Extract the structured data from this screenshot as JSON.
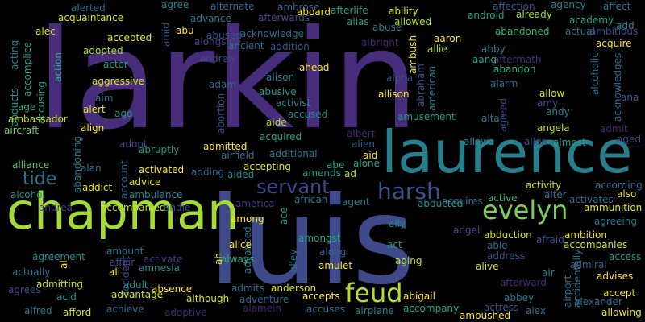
{
  "background": "#000000",
  "words": [
    {
      "text": "larkin",
      "color": "#472d7b"
    },
    {
      "text": "luis",
      "color": "#3e4a89"
    },
    {
      "text": "laurence",
      "color": "#277f8e"
    },
    {
      "text": "chapman",
      "color": "#a5db36"
    },
    {
      "text": "evelyn",
      "color": "#7ad151"
    },
    {
      "text": "feud",
      "color": "#b5de2b"
    },
    {
      "text": "harsh",
      "color": "#3b528b"
    },
    {
      "text": "servant",
      "color": "#3e4989"
    },
    {
      "text": "tide",
      "color": "#2c728e"
    },
    {
      "text": "agree",
      "color": "#25838e"
    },
    {
      "text": "alerted",
      "color": "#2e6f8e"
    },
    {
      "text": "alternate",
      "color": "#31688e"
    },
    {
      "text": "ambrose",
      "color": "#33638d"
    },
    {
      "text": "affection",
      "color": "#365c8d"
    },
    {
      "text": "agency",
      "color": "#26828e"
    },
    {
      "text": "affect",
      "color": "#2a778e"
    },
    {
      "text": "ability",
      "color": "#d2e21b"
    },
    {
      "text": "acting",
      "color": "#26828e"
    },
    {
      "text": "accomplice",
      "color": "#1e9c89"
    },
    {
      "text": "acquaintance",
      "color": "#d8e219"
    },
    {
      "text": "advance",
      "color": "#2a788e"
    },
    {
      "text": "aboard",
      "color": "#fde725"
    },
    {
      "text": "afterwards",
      "color": "#3f4889"
    },
    {
      "text": "afterlife",
      "color": "#1fa187"
    },
    {
      "text": "alias",
      "color": "#1f9a8a"
    },
    {
      "text": "allowed",
      "color": "#b5de2b"
    },
    {
      "text": "android",
      "color": "#20a486"
    },
    {
      "text": "already",
      "color": "#a0da39"
    },
    {
      "text": "academy",
      "color": "#22a785"
    },
    {
      "text": "add",
      "color": "#25858e"
    },
    {
      "text": "alec",
      "color": "#d2e21b"
    },
    {
      "text": "accepted",
      "color": "#e7e419"
    },
    {
      "text": "amid",
      "color": "#3b528b"
    },
    {
      "text": "abu",
      "color": "#fde725"
    },
    {
      "text": "acknowledge",
      "color": "#2f6c8e"
    },
    {
      "text": "abuse",
      "color": "#29798e"
    },
    {
      "text": "ambush",
      "color": "#e5e419"
    },
    {
      "text": "aaron",
      "color": "#fde725"
    },
    {
      "text": "abandoned",
      "color": "#2db27d"
    },
    {
      "text": "actual",
      "color": "#2c728e"
    },
    {
      "text": "ambitious",
      "color": "#3e4a89"
    },
    {
      "text": "alongside",
      "color": "#3f4788"
    },
    {
      "text": "abused",
      "color": "#3b528b"
    },
    {
      "text": "albright",
      "color": "#482576"
    },
    {
      "text": "allie",
      "color": "#a5db36"
    },
    {
      "text": "abby",
      "color": "#29798e"
    },
    {
      "text": "aftermath",
      "color": "#472c7a"
    },
    {
      "text": "acquire",
      "color": "#fde725"
    },
    {
      "text": "action",
      "color": "#29af7f"
    },
    {
      "text": "adopted",
      "color": "#addc30"
    },
    {
      "text": "ancient",
      "color": "#2e6e8e"
    },
    {
      "text": "addition",
      "color": "#3a548c"
    },
    {
      "text": "actor",
      "color": "#1fa088"
    },
    {
      "text": "andrew",
      "color": "#3f4788"
    },
    {
      "text": "aang",
      "color": "#20a486"
    },
    {
      "text": "abandon",
      "color": "#2ab07f"
    },
    {
      "text": "alcoholic",
      "color": "#2c728e"
    },
    {
      "text": "acknowledges",
      "color": "#31688e"
    },
    {
      "text": "aggressive",
      "color": "#d8e219"
    },
    {
      "text": "ahead",
      "color": "#fde725"
    },
    {
      "text": "adam",
      "color": "#32648e"
    },
    {
      "text": "alison",
      "color": "#26828e"
    },
    {
      "text": "alpha",
      "color": "#3e4a89"
    },
    {
      "text": "abraham",
      "color": "#3a548c"
    },
    {
      "text": "american",
      "color": "#2a778e"
    },
    {
      "text": "alarm",
      "color": "#31688e"
    },
    {
      "text": "abducts",
      "color": "#1f948c"
    },
    {
      "text": "accusing",
      "color": "#22a785"
    },
    {
      "text": "aim",
      "color": "#2c718e"
    },
    {
      "text": "abusive",
      "color": "#1f998a"
    },
    {
      "text": "allison",
      "color": "#fde725"
    },
    {
      "text": "allow",
      "color": "#d0e11c"
    },
    {
      "text": "ana",
      "color": "#365d8d"
    },
    {
      "text": "age",
      "color": "#29af7f"
    },
    {
      "text": "alert",
      "color": "#e5e419"
    },
    {
      "text": "ago",
      "color": "#1f958b"
    },
    {
      "text": "abortion",
      "color": "#3b518b"
    },
    {
      "text": "activist",
      "color": "#26828e"
    },
    {
      "text": "amy",
      "color": "#3b528b"
    },
    {
      "text": "andy",
      "color": "#24868e"
    },
    {
      "text": "ambassador",
      "color": "#c2df23"
    },
    {
      "text": "accused",
      "color": "#24878e"
    },
    {
      "text": "aide",
      "color": "#addc30"
    },
    {
      "text": "amusement",
      "color": "#1f9a8a"
    },
    {
      "text": "altar",
      "color": "#2c728e"
    },
    {
      "text": "agreed",
      "color": "#3f4889"
    },
    {
      "text": "angela",
      "color": "#b5de2b"
    },
    {
      "text": "admit",
      "color": "#482475"
    },
    {
      "text": "aged",
      "color": "#3e4a89"
    },
    {
      "text": "aircraft",
      "color": "#6ece58"
    },
    {
      "text": "align",
      "color": "#fde725"
    },
    {
      "text": "adopt",
      "color": "#3e4989"
    },
    {
      "text": "acquired",
      "color": "#1fa188"
    },
    {
      "text": "albert",
      "color": "#482575"
    },
    {
      "text": "alien",
      "color": "#365d8d"
    },
    {
      "text": "allows",
      "color": "#24878e"
    },
    {
      "text": "allen",
      "color": "#3f4788"
    },
    {
      "text": "almost",
      "color": "#1fa088"
    },
    {
      "text": "abruptly",
      "color": "#1f998a"
    },
    {
      "text": "admitted",
      "color": "#fde725"
    },
    {
      "text": "airfield",
      "color": "#2e6e8e"
    },
    {
      "text": "additional",
      "color": "#2c738e"
    },
    {
      "text": "aid",
      "color": "#fde725"
    },
    {
      "text": "alone",
      "color": "#22a785"
    },
    {
      "text": "alliance",
      "color": "#5ec962"
    },
    {
      "text": "abandoning",
      "color": "#287c8e"
    },
    {
      "text": "alan",
      "color": "#2c728e"
    },
    {
      "text": "account",
      "color": "#32658e"
    },
    {
      "text": "activated",
      "color": "#fde725"
    },
    {
      "text": "adding",
      "color": "#31688e"
    },
    {
      "text": "aided",
      "color": "#24878e"
    },
    {
      "text": "accepting",
      "color": "#d8e219"
    },
    {
      "text": "amends",
      "color": "#1f9a8a"
    },
    {
      "text": "ad",
      "color": "#bade28"
    },
    {
      "text": "abe",
      "color": "#22a785"
    },
    {
      "text": "activity",
      "color": "#cde11d"
    },
    {
      "text": "activates",
      "color": "#2f6c8e"
    },
    {
      "text": "according",
      "color": "#2e6e8e"
    },
    {
      "text": "alcohol",
      "color": "#20928c"
    },
    {
      "text": "addict",
      "color": "#e2e418"
    },
    {
      "text": "advice",
      "color": "#e7e419"
    },
    {
      "text": "also",
      "color": "#d8e219"
    },
    {
      "text": "ambulance",
      "color": "#25858e"
    },
    {
      "text": "african",
      "color": "#2a788e"
    },
    {
      "text": "agent",
      "color": "#26828e"
    },
    {
      "text": "acquires",
      "color": "#2e6e8e"
    },
    {
      "text": "active",
      "color": "#31b57b"
    },
    {
      "text": "alter",
      "color": "#2a788e"
    },
    {
      "text": "ammunition",
      "color": "#e5e419"
    },
    {
      "text": "andrea",
      "color": "#443983"
    },
    {
      "text": "accompanied",
      "color": "#bade28"
    },
    {
      "text": "andie",
      "color": "#3b528b"
    },
    {
      "text": "america",
      "color": "#443983"
    },
    {
      "text": "abducted",
      "color": "#1f948c"
    },
    {
      "text": "agreeing",
      "color": "#2c728e"
    },
    {
      "text": "among",
      "color": "#fde725"
    },
    {
      "text": "ace",
      "color": "#1f968b"
    },
    {
      "text": "ally",
      "color": "#25838e"
    },
    {
      "text": "angel",
      "color": "#3b528b"
    },
    {
      "text": "abduction",
      "color": "#d8e219"
    },
    {
      "text": "afraid",
      "color": "#3b528b"
    },
    {
      "text": "ambition",
      "color": "#e5e419"
    },
    {
      "text": "accompanies",
      "color": "#cde11d"
    },
    {
      "text": "amongst",
      "color": "#22a785"
    },
    {
      "text": "advanced",
      "color": "#2a778e"
    },
    {
      "text": "able",
      "color": "#2e6f8e"
    },
    {
      "text": "alice",
      "color": "#fde725"
    },
    {
      "text": "alley",
      "color": "#2c728e"
    },
    {
      "text": "along",
      "color": "#31688e"
    },
    {
      "text": "act",
      "color": "#1fa088"
    },
    {
      "text": "agreement",
      "color": "#20928c"
    },
    {
      "text": "amount",
      "color": "#29798e"
    },
    {
      "text": "activate",
      "color": "#443983"
    },
    {
      "text": "ah",
      "color": "#fde725"
    },
    {
      "text": "always",
      "color": "#2ab07f"
    },
    {
      "text": "address",
      "color": "#3b528b"
    },
    {
      "text": "access",
      "color": "#1f968b"
    },
    {
      "text": "al",
      "color": "#fde725"
    },
    {
      "text": "accident",
      "color": "#3e4a89"
    },
    {
      "text": "affair",
      "color": "#414487"
    },
    {
      "text": "aging",
      "color": "#b5de2b"
    },
    {
      "text": "alive",
      "color": "#d2e21b"
    },
    {
      "text": "air",
      "color": "#24868e"
    },
    {
      "text": "admiral",
      "color": "#33638d"
    },
    {
      "text": "actually",
      "color": "#2c728e"
    },
    {
      "text": "ali",
      "color": "#fde725"
    },
    {
      "text": "amnesia",
      "color": "#21908d"
    },
    {
      "text": "amulet",
      "color": "#fde725"
    },
    {
      "text": "accidentally",
      "color": "#2c728e"
    },
    {
      "text": "advises",
      "color": "#fde725"
    },
    {
      "text": "admitting",
      "color": "#cde11d"
    },
    {
      "text": "adult",
      "color": "#1f948c"
    },
    {
      "text": "afterward",
      "color": "#472c7a"
    },
    {
      "text": "airport",
      "color": "#2e6e8e"
    },
    {
      "text": "agrees",
      "color": "#3e4989"
    },
    {
      "text": "advantage",
      "color": "#d2e21b"
    },
    {
      "text": "absence",
      "color": "#fde725"
    },
    {
      "text": "admits",
      "color": "#2c718e"
    },
    {
      "text": "anderson",
      "color": "#e5e419"
    },
    {
      "text": "abigail",
      "color": "#fde725"
    },
    {
      "text": "abbey",
      "color": "#2a788e"
    },
    {
      "text": "accept",
      "color": "#e7e419"
    },
    {
      "text": "acid",
      "color": "#1f948c"
    },
    {
      "text": "although",
      "color": "#d8e219"
    },
    {
      "text": "adventure",
      "color": "#31688e"
    },
    {
      "text": "accepts",
      "color": "#fde725"
    },
    {
      "text": "alexander",
      "color": "#2e6e8e"
    },
    {
      "text": "alfred",
      "color": "#2c728e"
    },
    {
      "text": "afford",
      "color": "#d8e219"
    },
    {
      "text": "achieve",
      "color": "#32658e"
    },
    {
      "text": "adoptive",
      "color": "#482475"
    },
    {
      "text": "alamein",
      "color": "#482173"
    },
    {
      "text": "accuses",
      "color": "#2e6e8e"
    },
    {
      "text": "airplane",
      "color": "#25848e"
    },
    {
      "text": "accompany",
      "color": "#22a785"
    },
    {
      "text": "actress",
      "color": "#3b528b"
    },
    {
      "text": "alex",
      "color": "#2e6e8e"
    },
    {
      "text": "allowing",
      "color": "#e5e419"
    },
    {
      "text": "ambushed",
      "color": "#fde725"
    }
  ]
}
